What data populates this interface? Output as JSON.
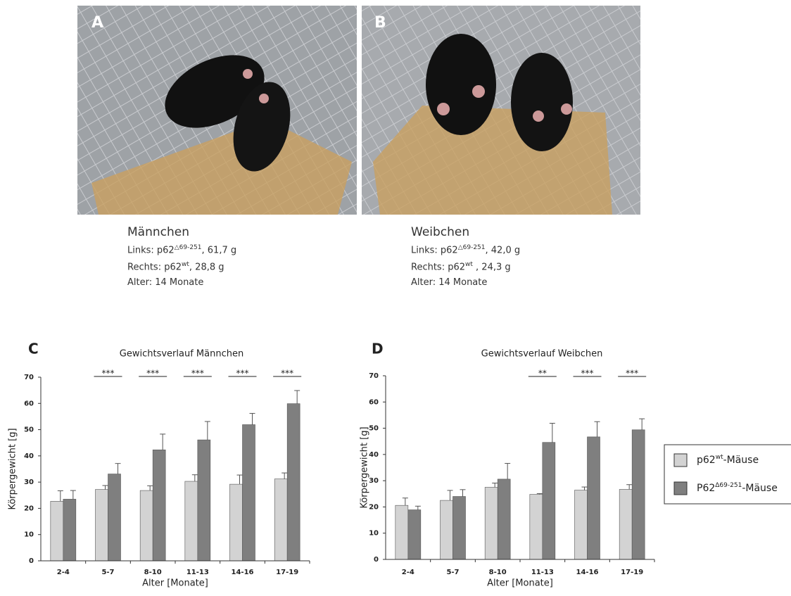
{
  "panels": [
    {
      "label": "A",
      "caption": {
        "title": "Männchen",
        "lines": [
          {
            "text": "Links: p62",
            "sup": "△69-251",
            "rest": ", 61,7 g"
          },
          {
            "text": "Rechts: p62",
            "sup": "wt",
            "rest": ", 28,8 g"
          },
          {
            "text": "Alter: 14 Monate"
          }
        ]
      }
    },
    {
      "label": "B",
      "caption": {
        "title": "Weibchen",
        "lines": [
          {
            "text": "Links: p62",
            "sup": "△69-251",
            "rest": ", 42,0 g"
          },
          {
            "text": "Rechts: p62",
            "sup": "wt",
            "rest": " , 24,3 g"
          },
          {
            "text": "Alter: 14 Monate"
          }
        ]
      }
    }
  ],
  "legend": {
    "entries": [
      {
        "text": "p62",
        "sup": "wt",
        "rest": "-Mäuse",
        "color": "#d3d3d3"
      },
      {
        "text": "P62",
        "sup": "Δ69-251",
        "rest": "-Mäuse",
        "color": "#7f7f7f"
      }
    ]
  },
  "chart_data": [
    {
      "type": "bar",
      "panel_label": "C",
      "title": "Gewichtsverlauf Männchen",
      "y_label": "Körpergewicht [g]",
      "x_label": "Alter [Monate]",
      "categories": [
        "2-4",
        "5-7",
        "8-10",
        "11-13",
        "14-16",
        "17-19"
      ],
      "series": [
        {
          "color": "#d3d3d3",
          "values": [
            22.7,
            27.2,
            26.8,
            30.3,
            29.2,
            31.2
          ],
          "errors": [
            4,
            1.5,
            1.8,
            2.5,
            3.5,
            2.3
          ]
        },
        {
          "color": "#7f7f7f",
          "values": [
            23.5,
            33.1,
            42.3,
            46.1,
            51.9,
            59.9
          ],
          "errors": [
            3.3,
            4,
            6,
            7,
            4.3,
            5
          ]
        }
      ],
      "significance": [
        null,
        "***",
        "***",
        "***",
        "***",
        "***"
      ],
      "ylim": [
        0,
        70
      ],
      "yticks": [
        0,
        10,
        20,
        30,
        40,
        50,
        60,
        70
      ]
    },
    {
      "type": "bar",
      "panel_label": "D",
      "title": "Gewichtsverlauf Weibchen",
      "y_label": "Körpergewicht [g]",
      "x_label": "Alter [Monate]",
      "categories": [
        "2-4",
        "5-7",
        "8-10",
        "11-13",
        "14-16",
        "17-19"
      ],
      "series": [
        {
          "color": "#d3d3d3",
          "values": [
            20.6,
            22.5,
            27.5,
            24.8,
            26.4,
            26.7
          ],
          "errors": [
            2.8,
            3.8,
            1.6,
            0.3,
            1.2,
            1.8
          ]
        },
        {
          "color": "#7f7f7f",
          "values": [
            18.9,
            24,
            30.6,
            44.6,
            46.7,
            49.4
          ],
          "errors": [
            1.4,
            2.6,
            6,
            7.3,
            5.8,
            4.2
          ]
        }
      ],
      "significance": [
        null,
        null,
        null,
        "**",
        "***",
        "***"
      ],
      "ylim": [
        0,
        70
      ],
      "yticks": [
        0,
        10,
        20,
        30,
        40,
        50,
        60,
        70
      ]
    }
  ]
}
